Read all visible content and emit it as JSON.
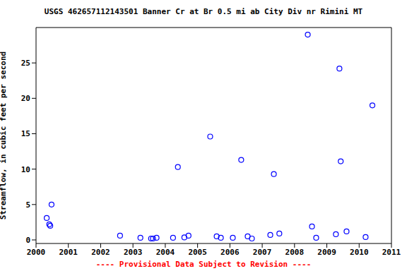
{
  "chart_data": {
    "type": "scatter",
    "title": "USGS 462657112143501 Banner Cr at Br 0.5 mi ab City Div nr Rimini MT",
    "y_label": "Streamflow, in cubic feet per second",
    "annotation": "---- Provisional Data Subject to Revision ----",
    "x": [
      2000.33,
      2000.41,
      2000.44,
      2000.48,
      2002.6,
      2003.23,
      2003.56,
      2003.62,
      2003.73,
      2004.24,
      2004.39,
      2004.59,
      2004.72,
      2005.39,
      2005.59,
      2005.72,
      2006.09,
      2006.35,
      2006.55,
      2006.68,
      2007.25,
      2007.36,
      2007.53,
      2008.41,
      2008.54,
      2008.67,
      2009.28,
      2009.39,
      2009.43,
      2009.61,
      2010.2,
      2010.41
    ],
    "values": [
      3.1,
      2.2,
      2.0,
      5.0,
      0.6,
      0.3,
      0.2,
      0.2,
      0.3,
      0.3,
      10.3,
      0.35,
      0.6,
      14.6,
      0.5,
      0.3,
      0.3,
      11.3,
      0.5,
      0.2,
      0.7,
      9.3,
      0.9,
      29.0,
      1.9,
      0.3,
      0.8,
      24.2,
      11.1,
      1.2,
      0.4,
      19.0
    ],
    "color": "#0000ff",
    "marker": "o",
    "xlim": [
      2000,
      2011
    ],
    "xticks": [
      2000,
      2001,
      2002,
      2003,
      2004,
      2005,
      2006,
      2007,
      2008,
      2009,
      2010,
      2011
    ],
    "ylim": [
      -0.5,
      30
    ],
    "yticks": [
      0,
      5,
      10,
      15,
      20,
      25
    ],
    "grid": false
  }
}
